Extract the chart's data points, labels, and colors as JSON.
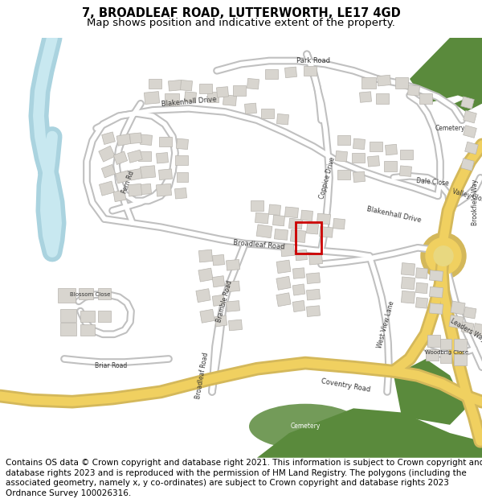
{
  "title_line1": "7, BROADLEAF ROAD, LUTTERWORTH, LE17 4GD",
  "title_line2": "Map shows position and indicative extent of the property.",
  "footer_text": "Contains OS data © Crown copyright and database right 2021. This information is subject to Crown copyright and database rights 2023 and is reproduced with the permission of HM Land Registry. The polygons (including the associated geometry, namely x, y co-ordinates) are subject to Crown copyright and database rights 2023 Ordnance Survey 100026316.",
  "title_fontsize": 11,
  "subtitle_fontsize": 10,
  "footer_fontsize": 7.5,
  "fig_width": 6.0,
  "fig_height": 6.25,
  "background_color": "#ffffff",
  "map_bg": "#ffffff",
  "red_box_color": "#cc0000"
}
